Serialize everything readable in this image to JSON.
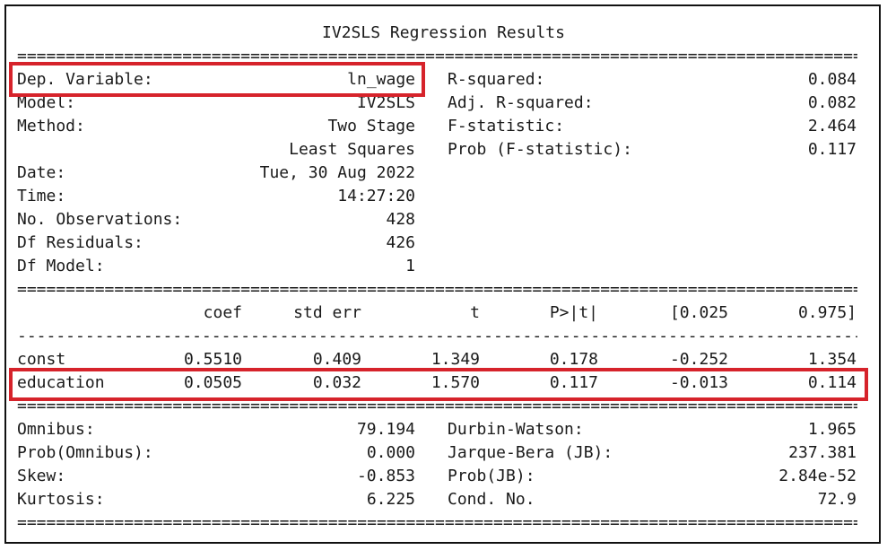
{
  "title": "IV2SLS Regression Results",
  "rule_double": "============================================================================================================================",
  "rule_single": "----------------------------------------------------------------------------------------------------------------------------",
  "header": {
    "left": [
      {
        "label": "Dep. Variable:",
        "value": "ln_wage"
      },
      {
        "label": "Model:",
        "value": "IV2SLS"
      },
      {
        "label": "Method:",
        "value": "Two Stage"
      },
      {
        "label": "",
        "value": "Least Squares"
      },
      {
        "label": "Date:",
        "value": "Tue, 30 Aug 2022"
      },
      {
        "label": "Time:",
        "value": "14:27:20"
      },
      {
        "label": "No. Observations:",
        "value": "428"
      },
      {
        "label": "Df Residuals:",
        "value": "426"
      },
      {
        "label": "Df Model:",
        "value": "1"
      }
    ],
    "right": [
      {
        "label": "R-squared:",
        "value": "0.084"
      },
      {
        "label": "Adj. R-squared:",
        "value": "0.082"
      },
      {
        "label": "F-statistic:",
        "value": "2.464"
      },
      {
        "label": "Prob (F-statistic):",
        "value": "0.117"
      }
    ]
  },
  "coef_table": {
    "columns": [
      "coef",
      "std err",
      "t",
      "P>|t|",
      "[0.025",
      "0.975]"
    ],
    "rows": [
      {
        "name": "const",
        "values": [
          "0.5510",
          "0.409",
          "1.349",
          "0.178",
          "-0.252",
          "1.354"
        ]
      },
      {
        "name": "education",
        "values": [
          "0.0505",
          "0.032",
          "1.570",
          "0.117",
          "-0.013",
          "0.114"
        ]
      }
    ]
  },
  "diagnostics": {
    "left": [
      {
        "label": "Omnibus:",
        "value": "79.194"
      },
      {
        "label": "Prob(Omnibus):",
        "value": "0.000"
      },
      {
        "label": "Skew:",
        "value": "-0.853"
      },
      {
        "label": "Kurtosis:",
        "value": "6.225"
      }
    ],
    "right": [
      {
        "label": "Durbin-Watson:",
        "value": "1.965"
      },
      {
        "label": "Jarque-Bera (JB):",
        "value": "237.381"
      },
      {
        "label": "Prob(JB):",
        "value": "2.84e-52"
      },
      {
        "label": "Cond. No.",
        "value": "72.9"
      }
    ]
  },
  "highlight_color": "#d6232b"
}
